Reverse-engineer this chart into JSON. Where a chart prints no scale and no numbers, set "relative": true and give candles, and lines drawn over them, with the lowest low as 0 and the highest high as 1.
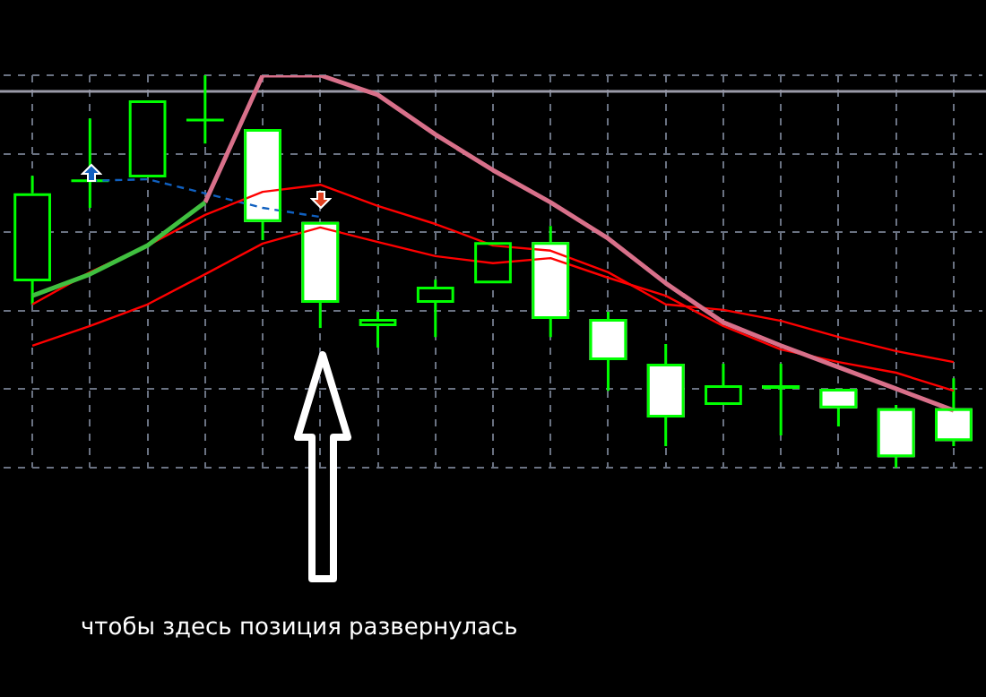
{
  "chart_data": {
    "type": "candlestick",
    "relative": true,
    "categories": [
      null,
      null,
      null,
      null,
      null,
      null,
      null,
      null,
      null,
      null,
      null,
      null,
      null,
      null,
      null,
      null,
      null
    ],
    "ohlc": [
      [
        0.475,
        0.744,
        0.416,
        0.699
      ],
      [
        0.731,
        0.89,
        0.662,
        0.731
      ],
      [
        0.74,
        0.936,
        0.74,
        0.936
      ],
      [
        0.886,
        1,
        0.826,
        0.886
      ],
      [
        0.863,
        0.863,
        0.58,
        0.626
      ],
      [
        0.626,
        0.626,
        0.356,
        0.42
      ],
      [
        0.361,
        0.397,
        0.306,
        0.379
      ],
      [
        0.42,
        0.479,
        0.333,
        0.461
      ],
      [
        0.47,
        0.575,
        0.47,
        0.575
      ],
      [
        0.575,
        0.616,
        0.333,
        0.379
      ],
      [
        0.379,
        0.397,
        0.196,
        0.274
      ],
      [
        0.265,
        0.315,
        0.055,
        0.128
      ],
      [
        0.16,
        0.265,
        0.16,
        0.21
      ],
      [
        0.21,
        0.265,
        0.082,
        0.201
      ],
      [
        0.201,
        0.201,
        0.105,
        0.151
      ],
      [
        0.151,
        0.16,
        0,
        0.027
      ],
      [
        0.151,
        0.228,
        0.055,
        0.068
      ]
    ],
    "series": [
      {
        "type": "line",
        "color": "#40c040",
        "values": [
          0.438,
          0.493,
          0.566,
          0.676,
          null,
          null,
          null,
          null,
          null,
          null,
          null,
          null,
          null,
          null,
          null,
          null,
          null
        ]
      },
      {
        "type": "line",
        "color": "#d8708a",
        "values": [
          null,
          null,
          null,
          0.676,
          1,
          1,
          0.95,
          0.849,
          0.758,
          0.676,
          0.584,
          0.47,
          0.37,
          0.311,
          0.256,
          0.201,
          0.146
        ]
      },
      {
        "type": "line",
        "color": "#ff0000",
        "values": [
          0.416,
          0.498,
          0.566,
          0.644,
          0.703,
          0.721,
          0.667,
          0.621,
          0.566,
          0.553,
          0.498,
          0.416,
          0.402,
          0.374,
          0.333,
          0.297,
          0.269
        ]
      },
      {
        "type": "line",
        "color": "#ff0000",
        "values": [
          0.311,
          0.361,
          0.416,
          0.493,
          0.571,
          0.612,
          0.575,
          0.539,
          0.521,
          0.534,
          0.484,
          0.438,
          0.361,
          0.301,
          0.269,
          0.242,
          0.196
        ]
      },
      {
        "type": "line",
        "color": "#1060c0",
        "line_style": "dashed",
        "values": [
          null,
          0.731,
          0.735,
          0.699,
          0.662,
          0.639,
          null,
          null,
          null,
          null,
          null,
          null,
          null,
          null,
          null,
          null,
          null
        ]
      }
    ],
    "ref_lines": [
      {
        "axis": "y",
        "value": 0.959,
        "color": "#9a9aa8"
      }
    ],
    "grid": true,
    "annotations": [
      "чтобы здесь позиция развернулась"
    ]
  }
}
